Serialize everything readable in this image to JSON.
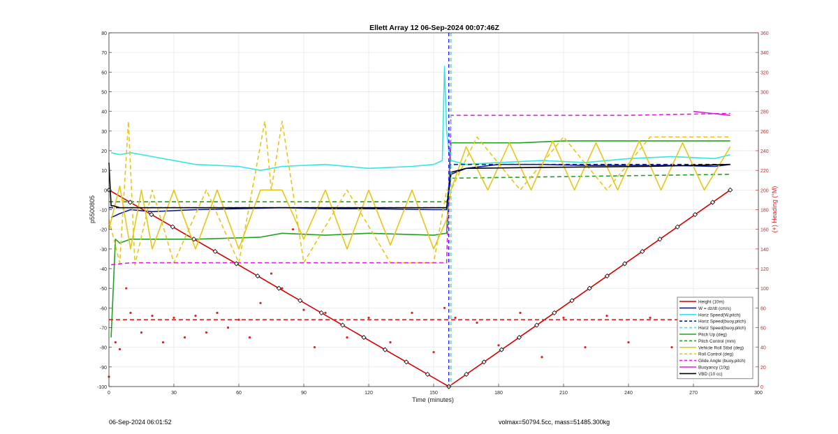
{
  "figure": {
    "footer_left": "06-Sep-2024 06:01:52",
    "footer_right": "volmax=50794.5cc, mass=51485.300kg"
  },
  "chart_data": {
    "type": "line",
    "title": "Ellett Array 12 06-Sep-2024 00:07:46Z",
    "xlabel": "Time (minutes)",
    "ylabel_left": "p5500805",
    "ylabel_right": "(+) Heading (°M)",
    "xlim": [
      0,
      300
    ],
    "ylim_left": [
      -100,
      80
    ],
    "ylim_right": [
      0,
      360
    ],
    "xticks": [
      0,
      30,
      60,
      90,
      120,
      150,
      180,
      210,
      240,
      270,
      300
    ],
    "yticks_left": [
      80,
      70,
      60,
      50,
      40,
      30,
      20,
      10,
      0,
      -10,
      -20,
      -30,
      -40,
      -50,
      -60,
      -70,
      -80,
      -90,
      -100
    ],
    "yticks_right": [
      360,
      340,
      320,
      300,
      280,
      260,
      240,
      220,
      200,
      180,
      160,
      140,
      120,
      100,
      80,
      60,
      40,
      20,
      0
    ],
    "grid": true,
    "legend_position": "bottom-right",
    "apogee_markers": [
      {
        "x": 157,
        "color": "#1a1aff"
      },
      {
        "x": 158,
        "color": "#33dddd"
      }
    ],
    "legend": [
      {
        "label": "Height (10m)",
        "color": "#d40000",
        "style": "solid"
      },
      {
        "label": "W = dz/dt (cm/s)",
        "color": "#0a1a9a",
        "style": "solid"
      },
      {
        "label": "Horiz Speed(W,pitch)",
        "color": "#33e6e6",
        "style": "solid"
      },
      {
        "label": "Horiz Speed(buoy,pitch)",
        "color": "#0a1a9a",
        "style": "dashed"
      },
      {
        "label": "Horiz Speed(buoy,pitch)",
        "color": "#33e6e6",
        "style": "dashed"
      },
      {
        "label": "Pitch Up (deg)",
        "color": "#22a022",
        "style": "solid"
      },
      {
        "label": "Pitch Control (mm)",
        "color": "#22a022",
        "style": "dashed"
      },
      {
        "label": "Vehicle Roll Stbd (deg)",
        "color": "#e6c619",
        "style": "solid"
      },
      {
        "label": "Roll Control (deg)",
        "color": "#e6c619",
        "style": "dashed"
      },
      {
        "label": "Glide Angle (buoy,pitch)",
        "color": "#e01ee0",
        "style": "dashed"
      },
      {
        "label": "Buoyancy (10g)",
        "color": "#e01ee0",
        "style": "solid"
      },
      {
        "label": "VBD (10 cc)",
        "color": "#000000",
        "style": "solid"
      }
    ],
    "series": [
      {
        "name": "Height (10m)",
        "color": "#d40000",
        "axis": "left",
        "x": [
          0,
          157,
          287
        ],
        "y": [
          0,
          -100,
          0
        ]
      },
      {
        "name": "W = dz/dt (cm/s)",
        "color": "#0a1a9a",
        "axis": "left",
        "x": [
          1,
          5,
          10,
          20,
          40,
          60,
          80,
          100,
          120,
          150,
          156,
          158,
          165,
          180,
          200,
          220,
          240,
          260,
          280,
          287
        ],
        "y": [
          -14,
          -12,
          -10,
          -11,
          -10,
          -9.5,
          -9,
          -9.5,
          -9.5,
          -10,
          -10,
          8,
          11,
          13,
          13,
          12.5,
          12.5,
          12.5,
          12,
          13
        ]
      },
      {
        "name": "Horiz Speed(W,pitch)",
        "color": "#33e6e6",
        "axis": "left",
        "x": [
          1,
          5,
          10,
          20,
          40,
          60,
          70,
          80,
          100,
          120,
          140,
          150,
          154,
          155,
          156,
          157,
          158,
          165,
          180,
          200,
          220,
          240,
          260,
          280,
          287
        ],
        "y": [
          19,
          18,
          19,
          17,
          13,
          12,
          10,
          12,
          13,
          11,
          12,
          13,
          15,
          63,
          30,
          20,
          15,
          13,
          14,
          15,
          14,
          16,
          17,
          16,
          18
        ]
      },
      {
        "name": "Horiz Speed(buoy,pitch)",
        "color": "#0a1a9a",
        "axis": "left",
        "dashed": true,
        "x": [
          0,
          156,
          158,
          287
        ],
        "y": [
          -9,
          -9,
          13,
          13
        ]
      },
      {
        "name": "Pitch Up (deg)",
        "color": "#22a022",
        "axis": "left",
        "x": [
          1,
          3,
          5,
          10,
          40,
          70,
          80,
          100,
          120,
          150,
          156,
          158,
          170,
          190,
          210,
          230,
          250,
          270,
          287
        ],
        "y": [
          -75,
          -25,
          -27,
          -25,
          -25,
          -24,
          -22,
          -23,
          -22,
          -23,
          -22,
          24,
          24,
          24,
          25,
          25,
          25,
          25,
          25
        ]
      },
      {
        "name": "Pitch Control (mm)",
        "color": "#22a022",
        "axis": "left",
        "dashed": true,
        "x": [
          0,
          156,
          158,
          287
        ],
        "y": [
          -6,
          -6,
          6,
          8
        ]
      },
      {
        "name": "Vehicle Roll Stbd (deg)",
        "color": "#e6c619",
        "axis": "left",
        "x": [
          0,
          5,
          10,
          15,
          20,
          30,
          40,
          50,
          60,
          70,
          80,
          90,
          100,
          110,
          120,
          130,
          140,
          150,
          156,
          158,
          165,
          175,
          185,
          195,
          205,
          215,
          225,
          235,
          245,
          255,
          265,
          275,
          287
        ],
        "y": [
          -20,
          2,
          -30,
          0,
          -30,
          0,
          -30,
          0,
          -30,
          0,
          0,
          -25,
          0,
          -30,
          0,
          -28,
          0,
          -30,
          -15,
          0,
          22,
          0,
          24,
          0,
          25,
          0,
          24,
          0,
          25,
          0,
          24,
          0,
          22
        ]
      },
      {
        "name": "Roll Control (deg)",
        "color": "#e6c619",
        "axis": "left",
        "dashed": true,
        "x": [
          0,
          5,
          9,
          12,
          20,
          30,
          45,
          60,
          72,
          75,
          80,
          90,
          110,
          130,
          150,
          156,
          158,
          170,
          190,
          210,
          230,
          250,
          270,
          287
        ],
        "y": [
          -15,
          -37,
          35,
          -38,
          0,
          -37,
          0,
          -37,
          35,
          0,
          35,
          -37,
          0,
          -37,
          -37,
          0,
          0,
          27,
          0,
          27,
          0,
          27,
          27,
          27
        ]
      },
      {
        "name": "Glide Angle (buoy,pitch)",
        "color": "#e01ee0",
        "axis": "left",
        "dashed": true,
        "x": [
          1,
          10,
          40,
          80,
          120,
          156,
          158,
          200,
          240,
          287
        ],
        "y": [
          -38,
          -37,
          -37,
          -37,
          -37,
          -37,
          38,
          38,
          38,
          39
        ]
      },
      {
        "name": "Buoyancy (10g)",
        "color": "#e01ee0",
        "axis": "left",
        "x": [
          270,
          287
        ],
        "y": [
          40,
          38
        ]
      },
      {
        "name": "VBD (10 cc)",
        "color": "#000000",
        "axis": "left",
        "x": [
          0,
          1,
          2,
          5,
          20,
          60,
          100,
          150,
          156,
          157,
          158,
          165,
          200,
          250,
          287
        ],
        "y": [
          14,
          -8,
          -8,
          -9,
          -9,
          -9,
          -9,
          -9,
          -9,
          0,
          9,
          11,
          11.5,
          12,
          13
        ]
      },
      {
        "name": "Heading",
        "color": "#e02020",
        "axis": "right",
        "markers": "dots",
        "x": [
          0,
          3,
          5,
          8,
          10,
          15,
          20,
          25,
          30,
          35,
          40,
          45,
          50,
          55,
          60,
          65,
          70,
          75,
          80,
          85,
          90,
          95,
          100,
          110,
          120,
          130,
          140,
          150,
          155,
          160,
          170,
          180,
          190,
          200,
          210,
          220,
          230,
          240,
          250,
          260,
          270,
          280
        ],
        "y": [
          10,
          45,
          38,
          100,
          75,
          55,
          72,
          45,
          70,
          50,
          72,
          55,
          75,
          60,
          68,
          50,
          85,
          115,
          100,
          160,
          78,
          40,
          75,
          50,
          70,
          45,
          75,
          35,
          80,
          70,
          65,
          42,
          75,
          30,
          70,
          40,
          72,
          45,
          70,
          40,
          72,
          50
        ]
      },
      {
        "name": "Heading mean",
        "color": "#e02020",
        "axis": "right",
        "dashed": true,
        "x": [
          0,
          287
        ],
        "y": [
          68,
          68
        ]
      }
    ]
  }
}
